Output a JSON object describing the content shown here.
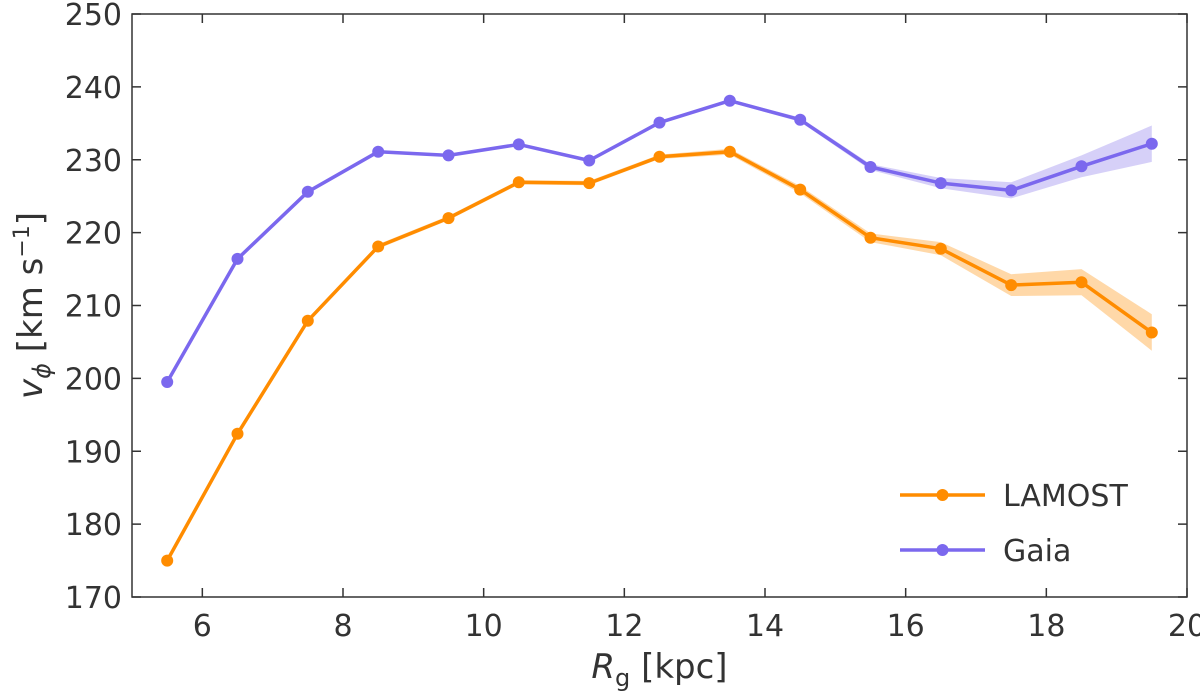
{
  "chart_data": {
    "type": "line",
    "xlabel_main": "R",
    "xlabel_sub": "g",
    "xlabel_unit": " [kpc]",
    "ylabel_main": "v",
    "ylabel_sub": "ϕ",
    "ylabel_unit_pre": " [km s",
    "ylabel_unit_sup": "−1",
    "ylabel_unit_post": "]",
    "xlim": [
      5,
      20
    ],
    "ylim": [
      170,
      250
    ],
    "xticks": [
      6,
      8,
      10,
      12,
      14,
      16,
      18,
      20
    ],
    "yticks": [
      170,
      180,
      190,
      200,
      210,
      220,
      230,
      240,
      250
    ],
    "legend_position": "lower-right",
    "series": [
      {
        "name": "LAMOST",
        "color": "#ff8c00",
        "band_color": "#ffd199",
        "x": [
          5.5,
          6.5,
          7.5,
          8.5,
          9.5,
          10.5,
          11.5,
          12.5,
          13.5,
          14.5,
          15.5,
          16.5,
          17.5,
          18.5,
          19.5
        ],
        "y": [
          175.0,
          192.4,
          207.9,
          218.1,
          222.0,
          226.9,
          226.8,
          230.4,
          231.1,
          225.9,
          219.3,
          217.8,
          212.8,
          213.2,
          206.3
        ],
        "err": [
          0.3,
          0.3,
          0.3,
          0.3,
          0.3,
          0.3,
          0.3,
          0.3,
          0.4,
          0.5,
          0.6,
          0.9,
          1.5,
          1.8,
          2.5
        ]
      },
      {
        "name": "Gaia",
        "color": "#7b68ee",
        "band_color": "#cfc8f7",
        "x": [
          5.5,
          6.5,
          7.5,
          8.5,
          9.5,
          10.5,
          11.5,
          12.5,
          13.5,
          14.5,
          15.5,
          16.5,
          17.5,
          18.5,
          19.5
        ],
        "y": [
          199.5,
          216.4,
          225.6,
          231.1,
          230.6,
          232.1,
          229.9,
          235.1,
          238.1,
          235.5,
          229.0,
          226.8,
          225.8,
          229.1,
          232.2
        ],
        "err": [
          0.2,
          0.2,
          0.2,
          0.2,
          0.2,
          0.2,
          0.2,
          0.2,
          0.2,
          0.3,
          0.4,
          0.7,
          1.1,
          1.5,
          2.5
        ]
      }
    ]
  }
}
